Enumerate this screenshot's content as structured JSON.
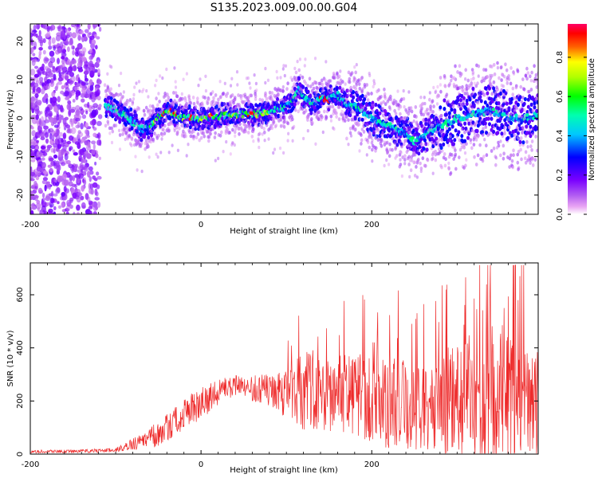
{
  "title": "S135.2023.009.00.00.G04",
  "colors": {
    "snr_line": "#ee2a2a",
    "axis": "#000000",
    "background": "#ffffff"
  },
  "chart_data": [
    {
      "type": "heatmap",
      "title": "S135.2023.009.00.00.G04",
      "xlabel": "Height of straight line (km)",
      "ylabel": "Frequency (Hz)",
      "xlim": [
        -200,
        395
      ],
      "ylim": [
        -25,
        24.5
      ],
      "x_ticks": [
        -200,
        0,
        200
      ],
      "y_ticks": [
        -20,
        -10,
        0,
        10,
        20
      ],
      "colorbar": {
        "label": "Normalized spectral amplitude",
        "range": [
          0,
          0.97
        ],
        "ticks": [
          "0.0",
          "0.2",
          "0.4",
          "0.6",
          "0.8"
        ],
        "tick_values": [
          0.0,
          0.2,
          0.4,
          0.6,
          0.8
        ],
        "colormap": [
          "#ffffff",
          "#e9a6f3",
          "#8b00ff",
          "#0000ff",
          "#00ffff",
          "#00ff00",
          "#ffff00",
          "#ff0000",
          "#ff0066"
        ]
      },
      "ridge": {
        "x": [
          -110,
          -90,
          -80,
          -70,
          -60,
          -50,
          -40,
          -30,
          -20,
          -10,
          0,
          20,
          40,
          60,
          80,
          100,
          110,
          115,
          120,
          130,
          140,
          150,
          160,
          170,
          180,
          200,
          220,
          240,
          250,
          260,
          270,
          280,
          300,
          320,
          340,
          360,
          380,
          395
        ],
        "y": [
          3,
          1,
          -1,
          -3,
          -2,
          0,
          2,
          1,
          0,
          0,
          0,
          0.5,
          1,
          1,
          1.5,
          3,
          5,
          8,
          6,
          4,
          5,
          5,
          6,
          4,
          3,
          0,
          -2,
          -4,
          -6,
          -5,
          -3,
          -2,
          0,
          1,
          2,
          0,
          0,
          1
        ]
      }
    },
    {
      "type": "line",
      "xlabel": "Height of straight line (km)",
      "ylabel": "SNR (10 * v/v)",
      "xlim": [
        -200,
        395
      ],
      "ylim": [
        0,
        720
      ],
      "x_ticks": [
        -200,
        0,
        200
      ],
      "y_ticks": [
        0,
        200,
        400,
        600
      ],
      "envelope": {
        "x": [
          -200,
          -150,
          -100,
          -80,
          -60,
          -40,
          -20,
          0,
          20,
          40,
          60,
          80,
          100,
          120,
          140,
          160,
          180,
          200,
          220,
          240,
          260,
          280,
          300,
          320,
          340,
          360,
          380,
          395
        ],
        "center": [
          10,
          10,
          15,
          35,
          60,
          95,
          150,
          190,
          230,
          260,
          250,
          240,
          225,
          240,
          250,
          230,
          220,
          200,
          190,
          180,
          180,
          200,
          200,
          210,
          210,
          220,
          200,
          190
        ],
        "spread": [
          6,
          6,
          8,
          25,
          40,
          55,
          60,
          60,
          50,
          40,
          50,
          60,
          90,
          150,
          160,
          160,
          160,
          170,
          180,
          180,
          180,
          200,
          210,
          260,
          300,
          260,
          220,
          200
        ],
        "peak_max": 712
      }
    }
  ]
}
